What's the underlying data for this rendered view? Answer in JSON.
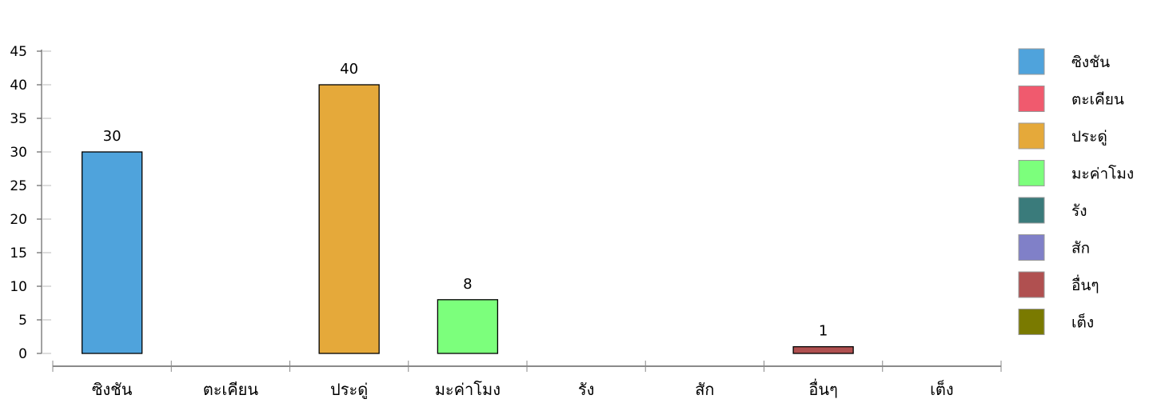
{
  "chart_data": {
    "type": "bar",
    "categories": [
      "ซิงชัน",
      "ตะเคียน",
      "ประดู่",
      "มะค่าโมง",
      "รัง",
      "สัก",
      "อื่นๆ",
      "เต็ง"
    ],
    "values": [
      30,
      0,
      40,
      8,
      0,
      0,
      1,
      0
    ],
    "data_labels": [
      "30",
      "",
      "40",
      "8",
      "",
      "",
      "1",
      ""
    ],
    "colors": [
      "#4fa3dc",
      "#f05a6e",
      "#e5a93a",
      "#7cff7c",
      "#3a7b7b",
      "#8080c8",
      "#b05050",
      "#7a7a00"
    ],
    "ylim": [
      0,
      45
    ],
    "yticks": [
      "0",
      "5",
      "10",
      "15",
      "20",
      "25",
      "30",
      "35",
      "40",
      "45"
    ],
    "title": "",
    "xlabel": "",
    "ylabel": "",
    "grid": false,
    "legend": {
      "position": "right",
      "entries": [
        "ซิงชัน",
        "ตะเคียน",
        "ประดู่",
        "มะค่าโมง",
        "รัง",
        "สัก",
        "อื่นๆ",
        "เต็ง"
      ]
    }
  }
}
